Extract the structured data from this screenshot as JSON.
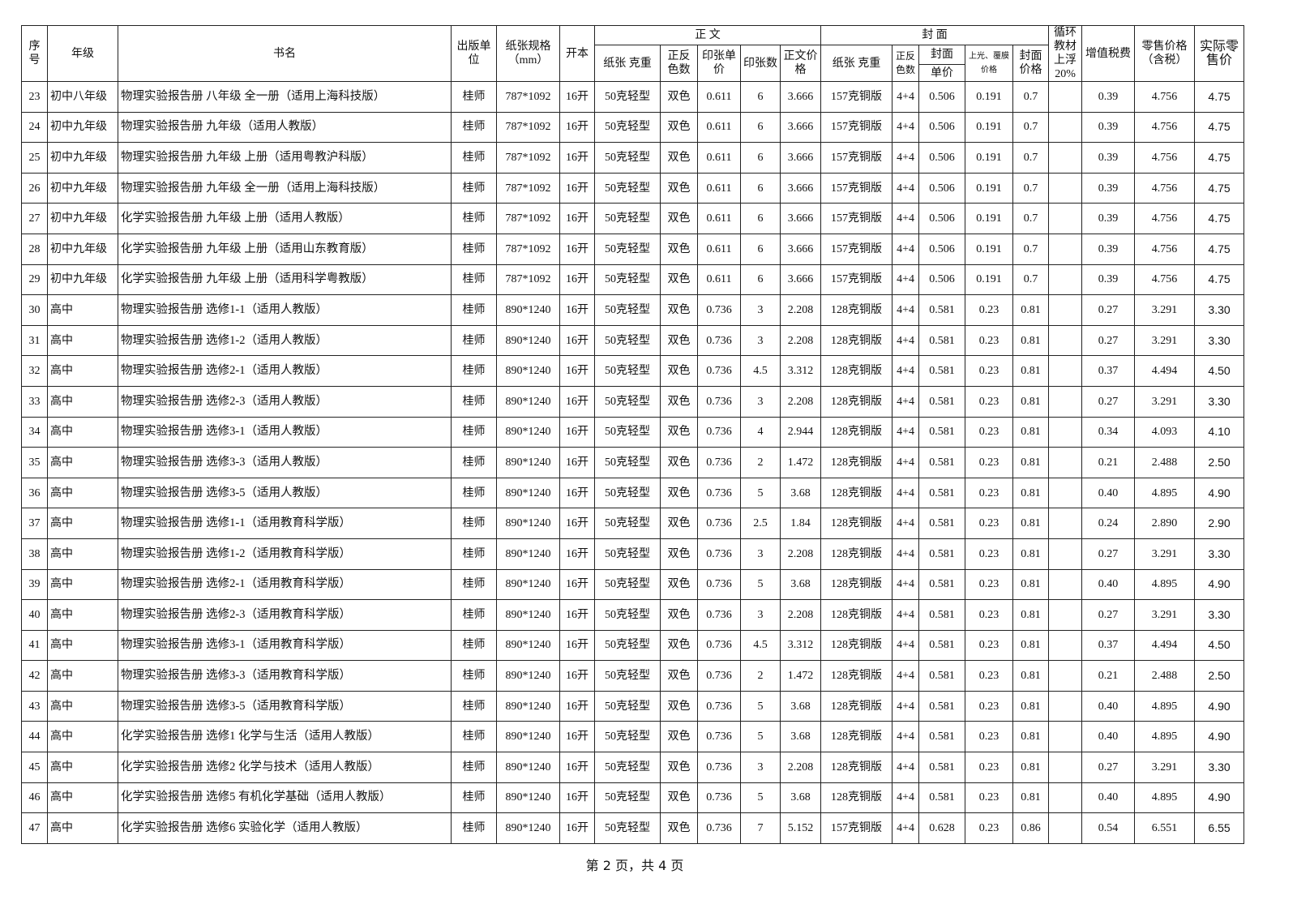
{
  "header": {
    "seq": "序号",
    "grade": "年级",
    "title": "书名",
    "publisher": "出版单位",
    "paper_size": "纸张规格（mm）",
    "format": "开本",
    "body_group": "正 文",
    "body_paper": "纸张 克重",
    "body_colors": "正反色数",
    "body_sheet_price": "印张单价",
    "body_sheets": "印张数",
    "body_price": "正文价格",
    "cover_group": "封 面",
    "cover_paper": "纸张 克重",
    "cover_colors": "正反色数",
    "cover_unit_top": "封面",
    "cover_unit_bottom": "单价",
    "cover_lamination": "上光、覆膜价格",
    "cover_price": "封面价格",
    "recycle": "循环教材上浮20%",
    "vat": "增值税费",
    "retail": "零售价格（含税）",
    "actual_retail": "实际零售价"
  },
  "rows": [
    [
      "23",
      "初中八年级",
      "物理实验报告册  八年级  全一册（适用上海科技版）",
      "桂师",
      "787*1092",
      "16开",
      "50克轻型",
      "双色",
      "0.611",
      "6",
      "3.666",
      "157克铜版",
      "4+4",
      "0.506",
      "0.191",
      "0.7",
      "",
      "0.39",
      "4.756",
      "4.75"
    ],
    [
      "24",
      "初中九年级",
      "物理实验报告册  九年级（适用人教版）",
      "桂师",
      "787*1092",
      "16开",
      "50克轻型",
      "双色",
      "0.611",
      "6",
      "3.666",
      "157克铜版",
      "4+4",
      "0.506",
      "0.191",
      "0.7",
      "",
      "0.39",
      "4.756",
      "4.75"
    ],
    [
      "25",
      "初中九年级",
      "物理实验报告册  九年级  上册（适用粤教沪科版）",
      "桂师",
      "787*1092",
      "16开",
      "50克轻型",
      "双色",
      "0.611",
      "6",
      "3.666",
      "157克铜版",
      "4+4",
      "0.506",
      "0.191",
      "0.7",
      "",
      "0.39",
      "4.756",
      "4.75"
    ],
    [
      "26",
      "初中九年级",
      "物理实验报告册  九年级  全一册（适用上海科技版）",
      "桂师",
      "787*1092",
      "16开",
      "50克轻型",
      "双色",
      "0.611",
      "6",
      "3.666",
      "157克铜版",
      "4+4",
      "0.506",
      "0.191",
      "0.7",
      "",
      "0.39",
      "4.756",
      "4.75"
    ],
    [
      "27",
      "初中九年级",
      "化学实验报告册  九年级  上册（适用人教版）",
      "桂师",
      "787*1092",
      "16开",
      "50克轻型",
      "双色",
      "0.611",
      "6",
      "3.666",
      "157克铜版",
      "4+4",
      "0.506",
      "0.191",
      "0.7",
      "",
      "0.39",
      "4.756",
      "4.75"
    ],
    [
      "28",
      "初中九年级",
      "化学实验报告册  九年级  上册（适用山东教育版）",
      "桂师",
      "787*1092",
      "16开",
      "50克轻型",
      "双色",
      "0.611",
      "6",
      "3.666",
      "157克铜版",
      "4+4",
      "0.506",
      "0.191",
      "0.7",
      "",
      "0.39",
      "4.756",
      "4.75"
    ],
    [
      "29",
      "初中九年级",
      "化学实验报告册  九年级  上册（适用科学粤教版）",
      "桂师",
      "787*1092",
      "16开",
      "50克轻型",
      "双色",
      "0.611",
      "6",
      "3.666",
      "157克铜版",
      "4+4",
      "0.506",
      "0.191",
      "0.7",
      "",
      "0.39",
      "4.756",
      "4.75"
    ],
    [
      "30",
      "高中",
      "物理实验报告册  选修1-1（适用人教版）",
      "桂师",
      "890*1240",
      "16开",
      "50克轻型",
      "双色",
      "0.736",
      "3",
      "2.208",
      "128克铜版",
      "4+4",
      "0.581",
      "0.23",
      "0.81",
      "",
      "0.27",
      "3.291",
      "3.30"
    ],
    [
      "31",
      "高中",
      "物理实验报告册  选修1-2（适用人教版）",
      "桂师",
      "890*1240",
      "16开",
      "50克轻型",
      "双色",
      "0.736",
      "3",
      "2.208",
      "128克铜版",
      "4+4",
      "0.581",
      "0.23",
      "0.81",
      "",
      "0.27",
      "3.291",
      "3.30"
    ],
    [
      "32",
      "高中",
      "物理实验报告册  选修2-1（适用人教版）",
      "桂师",
      "890*1240",
      "16开",
      "50克轻型",
      "双色",
      "0.736",
      "4.5",
      "3.312",
      "128克铜版",
      "4+4",
      "0.581",
      "0.23",
      "0.81",
      "",
      "0.37",
      "4.494",
      "4.50"
    ],
    [
      "33",
      "高中",
      "物理实验报告册  选修2-3（适用人教版）",
      "桂师",
      "890*1240",
      "16开",
      "50克轻型",
      "双色",
      "0.736",
      "3",
      "2.208",
      "128克铜版",
      "4+4",
      "0.581",
      "0.23",
      "0.81",
      "",
      "0.27",
      "3.291",
      "3.30"
    ],
    [
      "34",
      "高中",
      "物理实验报告册  选修3-1（适用人教版）",
      "桂师",
      "890*1240",
      "16开",
      "50克轻型",
      "双色",
      "0.736",
      "4",
      "2.944",
      "128克铜版",
      "4+4",
      "0.581",
      "0.23",
      "0.81",
      "",
      "0.34",
      "4.093",
      "4.10"
    ],
    [
      "35",
      "高中",
      "物理实验报告册  选修3-3（适用人教版）",
      "桂师",
      "890*1240",
      "16开",
      "50克轻型",
      "双色",
      "0.736",
      "2",
      "1.472",
      "128克铜版",
      "4+4",
      "0.581",
      "0.23",
      "0.81",
      "",
      "0.21",
      "2.488",
      "2.50"
    ],
    [
      "36",
      "高中",
      "物理实验报告册  选修3-5（适用人教版）",
      "桂师",
      "890*1240",
      "16开",
      "50克轻型",
      "双色",
      "0.736",
      "5",
      "3.68",
      "128克铜版",
      "4+4",
      "0.581",
      "0.23",
      "0.81",
      "",
      "0.40",
      "4.895",
      "4.90"
    ],
    [
      "37",
      "高中",
      "物理实验报告册  选修1-1（适用教育科学版）",
      "桂师",
      "890*1240",
      "16开",
      "50克轻型",
      "双色",
      "0.736",
      "2.5",
      "1.84",
      "128克铜版",
      "4+4",
      "0.581",
      "0.23",
      "0.81",
      "",
      "0.24",
      "2.890",
      "2.90"
    ],
    [
      "38",
      "高中",
      "物理实验报告册  选修1-2（适用教育科学版）",
      "桂师",
      "890*1240",
      "16开",
      "50克轻型",
      "双色",
      "0.736",
      "3",
      "2.208",
      "128克铜版",
      "4+4",
      "0.581",
      "0.23",
      "0.81",
      "",
      "0.27",
      "3.291",
      "3.30"
    ],
    [
      "39",
      "高中",
      "物理实验报告册  选修2-1（适用教育科学版）",
      "桂师",
      "890*1240",
      "16开",
      "50克轻型",
      "双色",
      "0.736",
      "5",
      "3.68",
      "128克铜版",
      "4+4",
      "0.581",
      "0.23",
      "0.81",
      "",
      "0.40",
      "4.895",
      "4.90"
    ],
    [
      "40",
      "高中",
      "物理实验报告册  选修2-3（适用教育科学版）",
      "桂师",
      "890*1240",
      "16开",
      "50克轻型",
      "双色",
      "0.736",
      "3",
      "2.208",
      "128克铜版",
      "4+4",
      "0.581",
      "0.23",
      "0.81",
      "",
      "0.27",
      "3.291",
      "3.30"
    ],
    [
      "41",
      "高中",
      "物理实验报告册  选修3-1（适用教育科学版）",
      "桂师",
      "890*1240",
      "16开",
      "50克轻型",
      "双色",
      "0.736",
      "4.5",
      "3.312",
      "128克铜版",
      "4+4",
      "0.581",
      "0.23",
      "0.81",
      "",
      "0.37",
      "4.494",
      "4.50"
    ],
    [
      "42",
      "高中",
      "物理实验报告册  选修3-3（适用教育科学版）",
      "桂师",
      "890*1240",
      "16开",
      "50克轻型",
      "双色",
      "0.736",
      "2",
      "1.472",
      "128克铜版",
      "4+4",
      "0.581",
      "0.23",
      "0.81",
      "",
      "0.21",
      "2.488",
      "2.50"
    ],
    [
      "43",
      "高中",
      "物理实验报告册  选修3-5（适用教育科学版）",
      "桂师",
      "890*1240",
      "16开",
      "50克轻型",
      "双色",
      "0.736",
      "5",
      "3.68",
      "128克铜版",
      "4+4",
      "0.581",
      "0.23",
      "0.81",
      "",
      "0.40",
      "4.895",
      "4.90"
    ],
    [
      "44",
      "高中",
      "化学实验报告册  选修1  化学与生活（适用人教版）",
      "桂师",
      "890*1240",
      "16开",
      "50克轻型",
      "双色",
      "0.736",
      "5",
      "3.68",
      "128克铜版",
      "4+4",
      "0.581",
      "0.23",
      "0.81",
      "",
      "0.40",
      "4.895",
      "4.90"
    ],
    [
      "45",
      "高中",
      "化学实验报告册  选修2  化学与技术（适用人教版）",
      "桂师",
      "890*1240",
      "16开",
      "50克轻型",
      "双色",
      "0.736",
      "3",
      "2.208",
      "128克铜版",
      "4+4",
      "0.581",
      "0.23",
      "0.81",
      "",
      "0.27",
      "3.291",
      "3.30"
    ],
    [
      "46",
      "高中",
      "化学实验报告册  选修5  有机化学基础（适用人教版）",
      "桂师",
      "890*1240",
      "16开",
      "50克轻型",
      "双色",
      "0.736",
      "5",
      "3.68",
      "128克铜版",
      "4+4",
      "0.581",
      "0.23",
      "0.81",
      "",
      "0.40",
      "4.895",
      "4.90"
    ],
    [
      "47",
      "高中",
      "化学实验报告册  选修6  实验化学（适用人教版）",
      "桂师",
      "890*1240",
      "16开",
      "50克轻型",
      "双色",
      "0.736",
      "7",
      "5.152",
      "157克铜版",
      "4+4",
      "0.628",
      "0.23",
      "0.86",
      "",
      "0.54",
      "6.551",
      "6.55"
    ]
  ],
  "footer": "第 2 页，共 4 页"
}
